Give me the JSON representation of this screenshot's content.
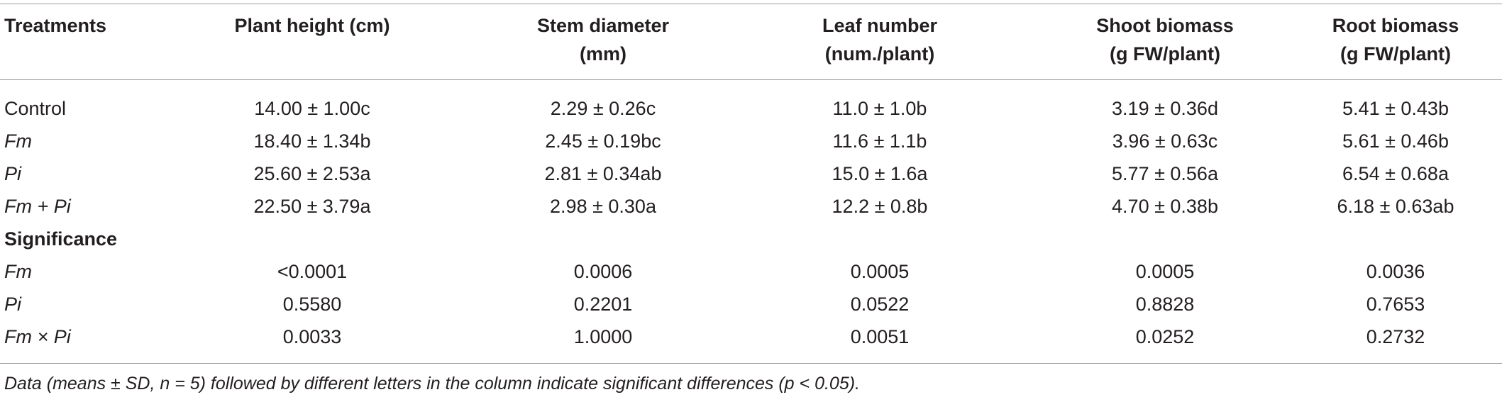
{
  "table": {
    "headers": {
      "treatments": "Treatments",
      "plant_height": "Plant height (cm)",
      "stem_diameter_l1": "Stem diameter",
      "stem_diameter_l2": "(mm)",
      "leaf_number_l1": "Leaf number",
      "leaf_number_l2": "(num./plant)",
      "shoot_biomass_l1": "Shoot biomass",
      "shoot_biomass_l2": "(g FW/plant)",
      "root_biomass_l1": "Root biomass",
      "root_biomass_l2": "(g FW/plant)"
    },
    "rows": [
      {
        "label": "Control",
        "plant_height": "14.00 ± 1.00c",
        "stem_diameter": "2.29 ± 0.26c",
        "leaf_number": "11.0 ± 1.0b",
        "shoot_biomass": "3.19 ± 0.36d",
        "root_biomass": "5.41 ± 0.43b"
      },
      {
        "label": "Fm",
        "plant_height": "18.40 ± 1.34b",
        "stem_diameter": "2.45 ± 0.19bc",
        "leaf_number": "11.6 ± 1.1b",
        "shoot_biomass": "3.96 ± 0.63c",
        "root_biomass": "5.61 ± 0.46b"
      },
      {
        "label": "Pi",
        "plant_height": "25.60 ± 2.53a",
        "stem_diameter": "2.81 ± 0.34ab",
        "leaf_number": "15.0 ± 1.6a",
        "shoot_biomass": "5.77 ± 0.56a",
        "root_biomass": "6.54 ± 0.68a"
      },
      {
        "label": "Fm + Pi",
        "plant_height": "22.50 ± 3.79a",
        "stem_diameter": "2.98 ± 0.30a",
        "leaf_number": "12.2 ± 0.8b",
        "shoot_biomass": "4.70 ± 0.38b",
        "root_biomass": "6.18 ± 0.63ab"
      }
    ],
    "significance_label": "Significance",
    "significance_rows": [
      {
        "label": "Fm",
        "plant_height": "<0.0001",
        "stem_diameter": "0.0006",
        "leaf_number": "0.0005",
        "shoot_biomass": "0.0005",
        "root_biomass": "0.0036"
      },
      {
        "label": "Pi",
        "plant_height": "0.5580",
        "stem_diameter": "0.2201",
        "leaf_number": "0.0522",
        "shoot_biomass": "0.8828",
        "root_biomass": "0.7653"
      },
      {
        "label": "Fm × Pi",
        "plant_height": "0.0033",
        "stem_diameter": "1.0000",
        "leaf_number": "0.0051",
        "shoot_biomass": "0.0252",
        "root_biomass": "0.2732"
      }
    ]
  },
  "footnote": "Data (means ± SD, n = 5) followed by different letters in the column indicate significant differences (p < 0.05)."
}
